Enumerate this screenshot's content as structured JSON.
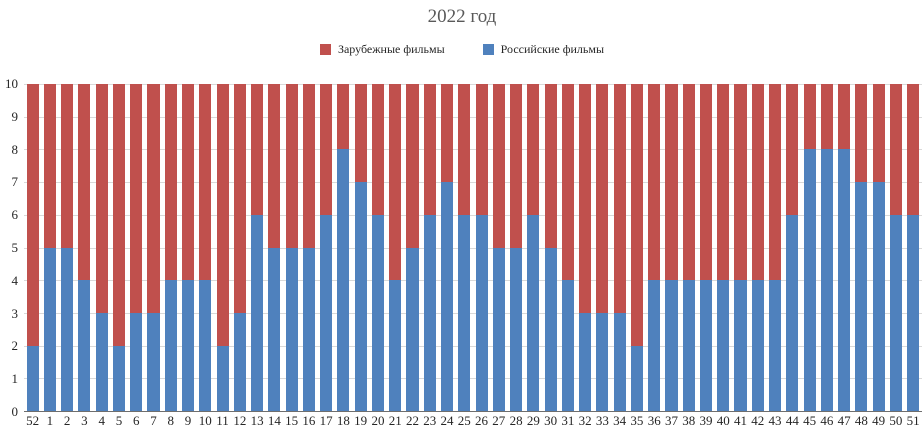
{
  "title": "2022 год",
  "legend": [
    {
      "label": "Зарубежные фильмы",
      "color": "#c0504d"
    },
    {
      "label": "Российские фильмы",
      "color": "#4f81bd"
    }
  ],
  "colors": {
    "foreign_films": "#c0504d",
    "russian_films": "#4f81bd",
    "gridline": "#d9d9d9",
    "axis_line": "#6e6e6e",
    "title_text": "#595959"
  },
  "chart_data": {
    "type": "bar",
    "stacked": true,
    "title": "2022 год",
    "xlabel": "",
    "ylabel": "",
    "ylim": [
      0,
      10
    ],
    "yticks": [
      0,
      1,
      2,
      3,
      4,
      5,
      6,
      7,
      8,
      9,
      10
    ],
    "grid": true,
    "legend_position": "top",
    "categories": [
      "52",
      "1",
      "2",
      "3",
      "4",
      "5",
      "6",
      "7",
      "8",
      "9",
      "10",
      "11",
      "12",
      "13",
      "14",
      "15",
      "16",
      "17",
      "18",
      "19",
      "20",
      "21",
      "22",
      "23",
      "24",
      "25",
      "26",
      "27",
      "28",
      "29",
      "30",
      "31",
      "32",
      "33",
      "34",
      "35",
      "36",
      "37",
      "38",
      "39",
      "40",
      "41",
      "42",
      "43",
      "44",
      "45",
      "46",
      "47",
      "48",
      "49",
      "50",
      "51"
    ],
    "series": [
      {
        "name": "Российские фильмы",
        "color": "#4f81bd",
        "stack_order": "bottom",
        "values": [
          2,
          5,
          5,
          4,
          3,
          2,
          3,
          3,
          4,
          4,
          4,
          2,
          3,
          6,
          5,
          5,
          5,
          6,
          8,
          7,
          6,
          4,
          5,
          6,
          7,
          6,
          6,
          5,
          5,
          6,
          5,
          4,
          3,
          3,
          3,
          2,
          4,
          4,
          4,
          4,
          4,
          4,
          4,
          4,
          6,
          8,
          8,
          8,
          7,
          7,
          6,
          6
        ]
      },
      {
        "name": "Зарубежные фильмы",
        "color": "#c0504d",
        "stack_order": "top",
        "values": [
          8,
          5,
          5,
          6,
          7,
          8,
          7,
          7,
          6,
          6,
          6,
          8,
          7,
          4,
          5,
          5,
          5,
          4,
          2,
          3,
          4,
          6,
          5,
          4,
          3,
          4,
          4,
          5,
          5,
          4,
          5,
          6,
          7,
          7,
          7,
          8,
          6,
          6,
          6,
          6,
          6,
          6,
          6,
          6,
          4,
          2,
          2,
          2,
          3,
          3,
          4,
          4
        ]
      }
    ]
  }
}
